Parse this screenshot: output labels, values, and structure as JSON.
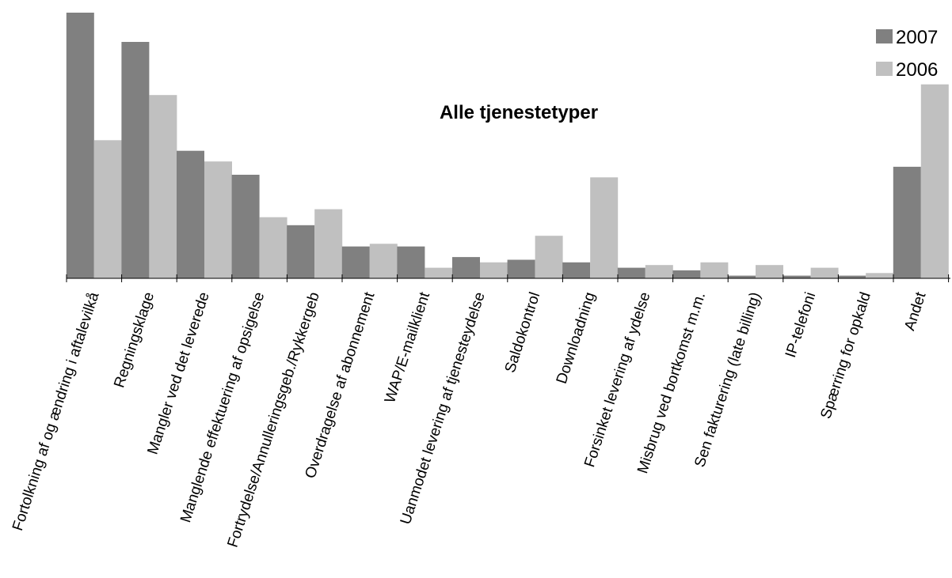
{
  "chart_data": {
    "type": "bar",
    "title": "Alle tjenestetyper",
    "xlabel": "",
    "ylabel": "",
    "ylim": [
      0,
      100
    ],
    "grid": false,
    "legend_position": "top-right",
    "categories": [
      "Fortolkning af og ændring i aftalevilkå",
      "Regningsklage",
      "Mangler ved det leverede",
      "Manglende effektuering af opsigelse",
      "Fortrydelse/Annulleringsgeb./Rykkergeb",
      "Overdragelse af abonnement",
      "WAP/E-mailklient",
      "Uanmodet levering af tjenesteydelse",
      "Saldokontrol",
      "Downloadning",
      "Forsinket levering af ydelse",
      "Misbrug ved bortkomst m.m.",
      "Sen fakturering (late billing)",
      "IP-telefoni",
      "Spærring for opkald",
      "Andet"
    ],
    "series": [
      {
        "name": "2007",
        "color": "#808080",
        "values": [
          100,
          89,
          48,
          39,
          20,
          12,
          12,
          8,
          7,
          6,
          4,
          3,
          1,
          1,
          1,
          42
        ]
      },
      {
        "name": "2006",
        "color": "#c0c0c0",
        "values": [
          52,
          69,
          44,
          23,
          26,
          13,
          4,
          6,
          16,
          38,
          5,
          6,
          5,
          4,
          2,
          73
        ]
      }
    ]
  }
}
